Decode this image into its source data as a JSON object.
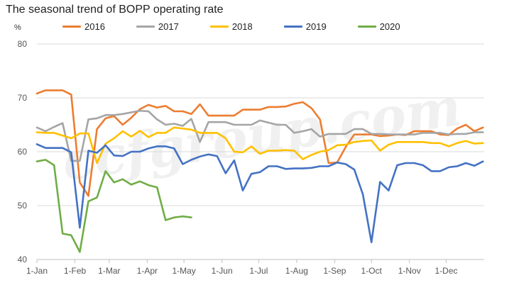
{
  "title": "The seasonal trend of BOPP operating rate",
  "unit": "%",
  "watermark": "ccfgroup.com",
  "chart_data": {
    "type": "line",
    "title": "The seasonal trend of BOPP operating rate",
    "ylabel": "%",
    "ylim": [
      40,
      80
    ],
    "yticks": [
      40,
      50,
      60,
      70,
      80
    ],
    "grid": true,
    "legend_position": "top",
    "x_tick_labels": [
      "1-Jan",
      "1-Feb",
      "1-Mar",
      "1-Apr",
      "1-May",
      "1-Jun",
      "1-Jul",
      "1-Aug",
      "1-Sep",
      "1-Oct",
      "1-Nov",
      "1-Dec"
    ],
    "x_tick_days": [
      1,
      32,
      60,
      91,
      121,
      152,
      182,
      213,
      244,
      274,
      305,
      335
    ],
    "x_range_days": [
      1,
      366
    ],
    "x_unit": "day of year",
    "series": [
      {
        "name": "2016",
        "color": "#ED7D31",
        "x": [
          1,
          8,
          15,
          22,
          29,
          36,
          43,
          50,
          57,
          64,
          71,
          78,
          85,
          92,
          99,
          106,
          113,
          120,
          127,
          134,
          141,
          148,
          155,
          162,
          169,
          176,
          183,
          190,
          197,
          204,
          211,
          218,
          225,
          232,
          239,
          246,
          253,
          260,
          267,
          274,
          281,
          288,
          295,
          302,
          309,
          316,
          323,
          330,
          337,
          344,
          351,
          358,
          365
        ],
        "y": [
          70.8,
          71.4,
          71.4,
          71.4,
          70.6,
          54.3,
          51.8,
          64.2,
          66.2,
          66.6,
          65.0,
          66.3,
          67.9,
          68.7,
          68.2,
          68.5,
          67.5,
          67.5,
          67.0,
          68.8,
          66.7,
          66.7,
          66.7,
          66.7,
          67.8,
          67.8,
          67.8,
          68.3,
          68.3,
          68.4,
          68.9,
          69.2,
          68.1,
          66.0,
          57.9,
          58.0,
          60.9,
          63.2,
          63.2,
          63.2,
          62.9,
          63.0,
          63.2,
          63.1,
          63.8,
          63.8,
          63.8,
          63.2,
          63.1,
          64.3,
          65.0,
          63.8,
          64.5
        ]
      },
      {
        "name": "2017",
        "color": "#A5A5A5",
        "x": [
          1,
          8,
          15,
          22,
          29,
          36,
          43,
          50,
          57,
          64,
          71,
          78,
          85,
          92,
          99,
          106,
          113,
          120,
          127,
          134,
          141,
          148,
          155,
          162,
          169,
          176,
          183,
          190,
          197,
          204,
          211,
          218,
          225,
          232,
          239,
          246,
          253,
          260,
          267,
          274,
          281,
          288,
          295,
          302,
          309,
          316,
          323,
          330,
          337,
          344,
          351,
          358,
          365
        ],
        "y": [
          64.5,
          63.8,
          64.6,
          65.3,
          58.3,
          58.3,
          66.0,
          66.2,
          66.8,
          66.8,
          67.0,
          67.3,
          67.6,
          67.5,
          66.0,
          65.0,
          65.2,
          64.8,
          66.1,
          61.8,
          65.5,
          65.5,
          65.5,
          65.0,
          65.0,
          65.0,
          65.8,
          65.4,
          65.0,
          65.0,
          63.5,
          63.8,
          64.2,
          62.8,
          63.3,
          63.3,
          63.3,
          64.2,
          64.2,
          63.3,
          63.3,
          63.2,
          63.2,
          63.2,
          63.2,
          63.5,
          63.5,
          63.5,
          63.2,
          63.3,
          63.3,
          63.6,
          63.6
        ]
      },
      {
        "name": "2018",
        "color": "#FFC000",
        "x": [
          1,
          8,
          15,
          22,
          29,
          36,
          43,
          50,
          57,
          64,
          71,
          78,
          85,
          92,
          99,
          106,
          113,
          120,
          127,
          134,
          141,
          148,
          155,
          162,
          169,
          176,
          183,
          190,
          197,
          204,
          211,
          218,
          225,
          232,
          239,
          246,
          253,
          260,
          267,
          274,
          281,
          288,
          295,
          302,
          309,
          316,
          323,
          330,
          337,
          344,
          351,
          358,
          365
        ],
        "y": [
          63.6,
          63.5,
          63.5,
          63.0,
          62.5,
          63.4,
          63.4,
          57.9,
          61.5,
          62.5,
          63.8,
          62.8,
          63.9,
          62.7,
          63.5,
          63.5,
          64.5,
          64.3,
          64.1,
          63.5,
          63.5,
          63.5,
          62.5,
          60.0,
          59.9,
          61.0,
          59.6,
          60.2,
          60.2,
          60.3,
          60.2,
          58.6,
          59.4,
          60.0,
          60.3,
          61.2,
          61.3,
          61.8,
          62.0,
          62.1,
          60.2,
          61.3,
          61.8,
          61.8,
          61.8,
          61.8,
          61.6,
          61.6,
          61.0,
          61.6,
          62.0,
          61.5,
          61.6
        ]
      },
      {
        "name": "2019",
        "color": "#4472C4",
        "x": [
          1,
          8,
          15,
          22,
          29,
          36,
          43,
          50,
          57,
          64,
          71,
          78,
          85,
          92,
          99,
          106,
          113,
          120,
          127,
          134,
          141,
          148,
          155,
          162,
          169,
          176,
          183,
          190,
          197,
          204,
          211,
          218,
          225,
          232,
          239,
          246,
          253,
          260,
          267,
          274,
          281,
          288,
          295,
          302,
          309,
          316,
          323,
          330,
          337,
          344,
          351,
          358,
          365
        ],
        "y": [
          61.4,
          60.7,
          60.7,
          60.7,
          59.9,
          45.9,
          60.2,
          59.8,
          61.2,
          59.3,
          59.2,
          60.0,
          60.0,
          60.6,
          61.0,
          61.0,
          60.6,
          57.7,
          58.5,
          59.1,
          59.5,
          59.2,
          56.0,
          58.4,
          52.8,
          55.9,
          56.2,
          57.3,
          57.3,
          56.8,
          56.9,
          56.9,
          57.0,
          57.3,
          57.3,
          58.0,
          57.7,
          56.7,
          52.1,
          43.2,
          54.4,
          52.8,
          57.5,
          57.9,
          57.9,
          57.5,
          56.4,
          56.4,
          57.1,
          57.3,
          57.9,
          57.4,
          58.2
        ]
      },
      {
        "name": "2020",
        "color": "#70AD47",
        "x": [
          1,
          8,
          15,
          22,
          29,
          36,
          43,
          50,
          57,
          64,
          71,
          78,
          85,
          92,
          99,
          106,
          113,
          120,
          127
        ],
        "y": [
          58.2,
          58.5,
          57.5,
          44.8,
          44.5,
          41.4,
          50.8,
          51.5,
          56.4,
          54.3,
          54.9,
          53.9,
          54.5,
          53.8,
          53.4,
          47.3,
          47.8,
          48.0,
          47.8
        ]
      }
    ]
  }
}
